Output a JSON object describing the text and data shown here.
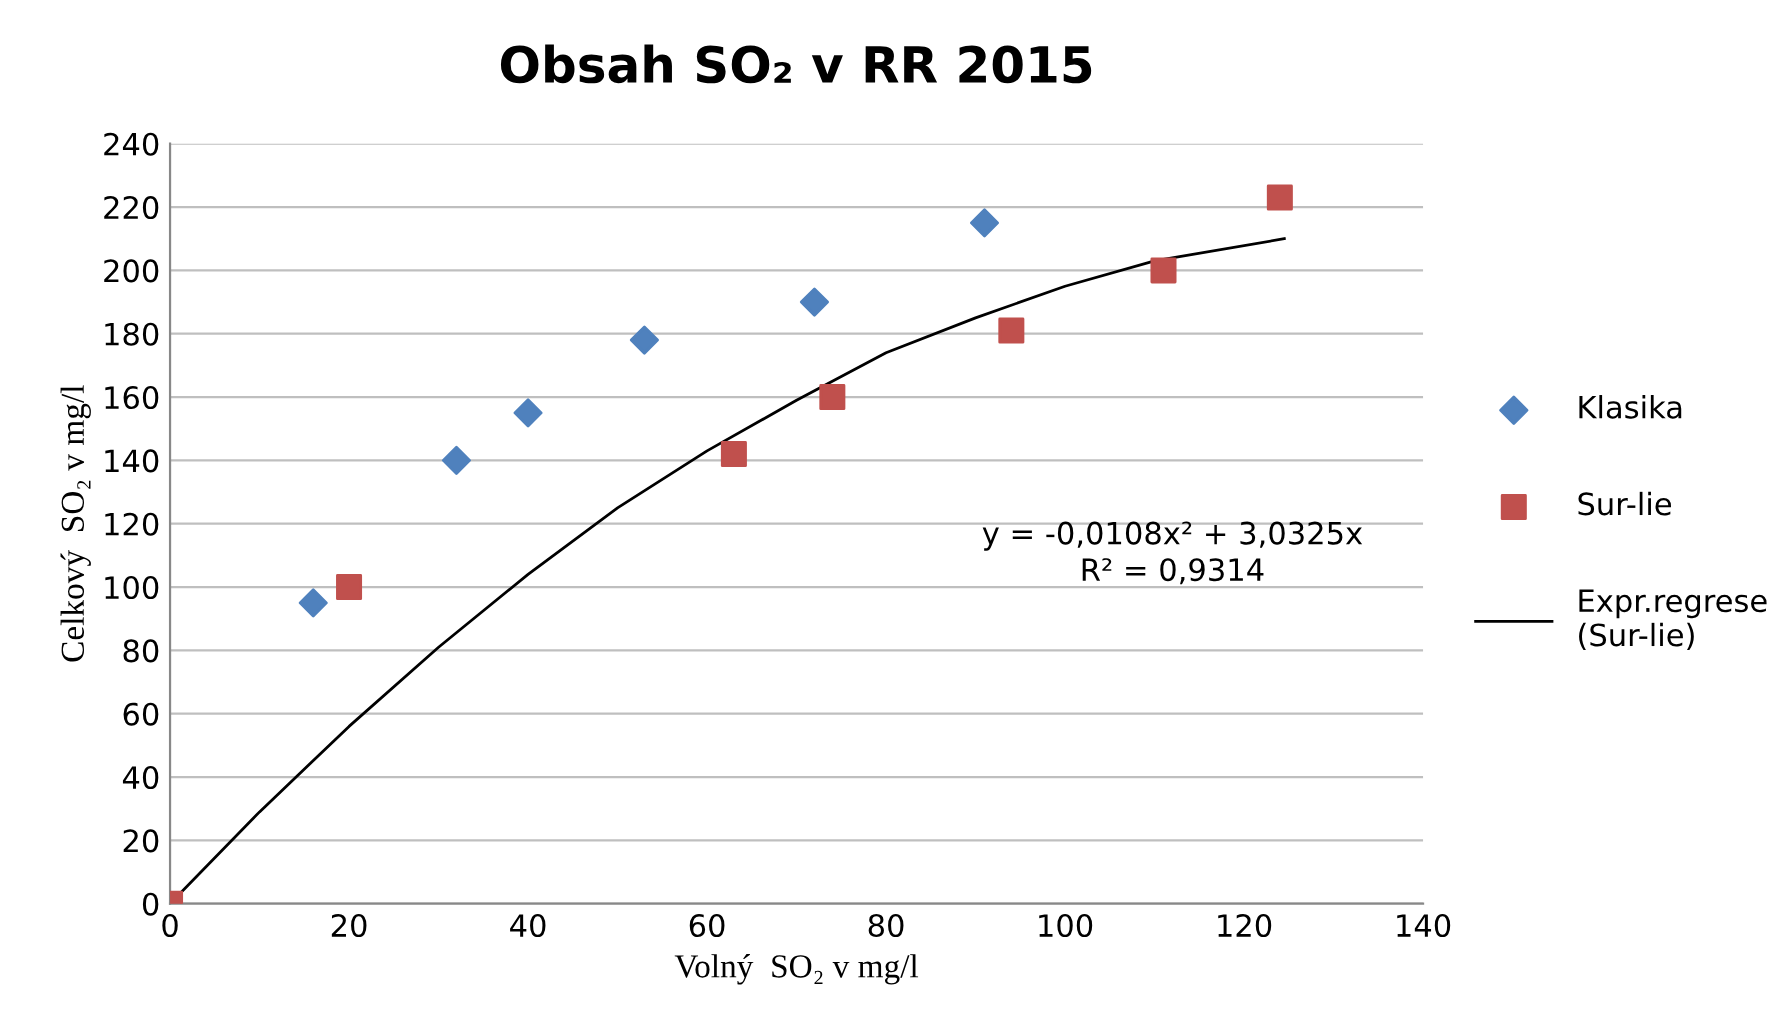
{
  "chart_data": {
    "type": "scatter",
    "title": "Obsah SO₂ v RR 2015",
    "xlabel": "Volný  SO₂ v mg/l",
    "ylabel": "Celkový  SO₂ v mg/l",
    "series": [
      {
        "name": "Klasika",
        "color": "#4f81bd",
        "marker": "diamond",
        "x": [
          16,
          32,
          40,
          53,
          72,
          91
        ],
        "values": [
          95,
          140,
          155,
          178,
          190,
          215
        ]
      },
      {
        "name": "Sur-lie",
        "color": "#c0504d",
        "marker": "square",
        "x": [
          0,
          20,
          63,
          74,
          94,
          111,
          124
        ],
        "values": [
          0,
          100,
          142,
          160,
          181,
          200,
          223
        ]
      },
      {
        "name": "Expr.regrese (Sur-lie)",
        "type": "line",
        "color": "#000000",
        "marker": "none",
        "x": [
          0,
          10,
          20,
          30,
          40,
          50,
          60,
          70,
          80,
          90,
          100,
          110,
          124.5
        ],
        "values": [
          0,
          29,
          56,
          81,
          104,
          125,
          143,
          159,
          174,
          185,
          195,
          203,
          210
        ]
      }
    ],
    "xlim": [
      0,
      140
    ],
    "xticks": [
      0,
      20,
      40,
      60,
      80,
      100,
      120,
      140
    ],
    "ylim": [
      0,
      240
    ],
    "yticks": [
      0,
      20,
      40,
      60,
      80,
      100,
      120,
      140,
      160,
      180,
      200,
      220,
      240
    ],
    "grid": "y",
    "legend": "right",
    "annotations": [
      "y = -0,0108x² + 3,0325x\nR² = 0,9314"
    ]
  }
}
